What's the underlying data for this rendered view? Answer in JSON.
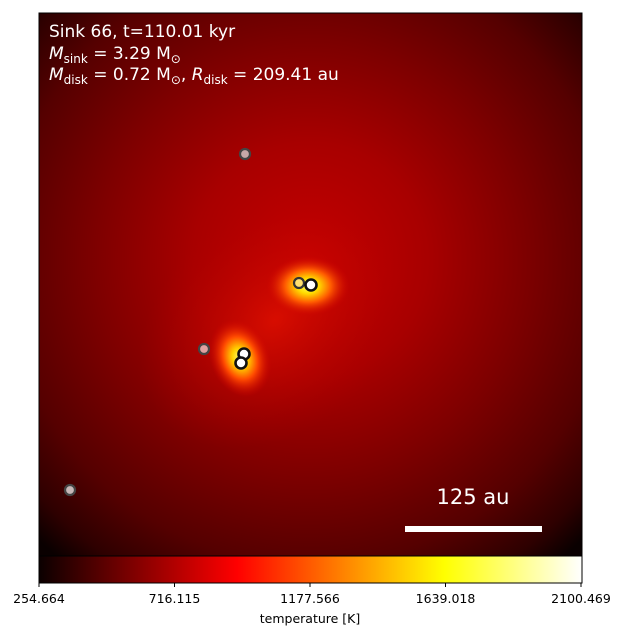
{
  "panel": {
    "line1": "Sink 66, t=110.01 kyr",
    "line2_label": "M",
    "line2_sub": "sink",
    "line2_value": " = 3.29 M",
    "line2_sun": "⊙",
    "line3_label": "M",
    "line3_sub": "disk",
    "line3_value": " = 0.72 M",
    "line3_sun": "⊙",
    "line3_sep": ", ",
    "line3_rlabel": "R",
    "line3_rsub": "disk",
    "line3_rvalue": " = 209.41 au"
  },
  "scalebar": {
    "label": "125 au"
  },
  "colorbar": {
    "label": "temperature [K]",
    "ticks": [
      "254.664",
      "716.115",
      "1177.566",
      "1639.018",
      "2100.469"
    ],
    "colormap": "hot"
  },
  "colors": {
    "text": "#ffffff",
    "scalebar": "#ffffff",
    "frame": "#000000"
  }
}
